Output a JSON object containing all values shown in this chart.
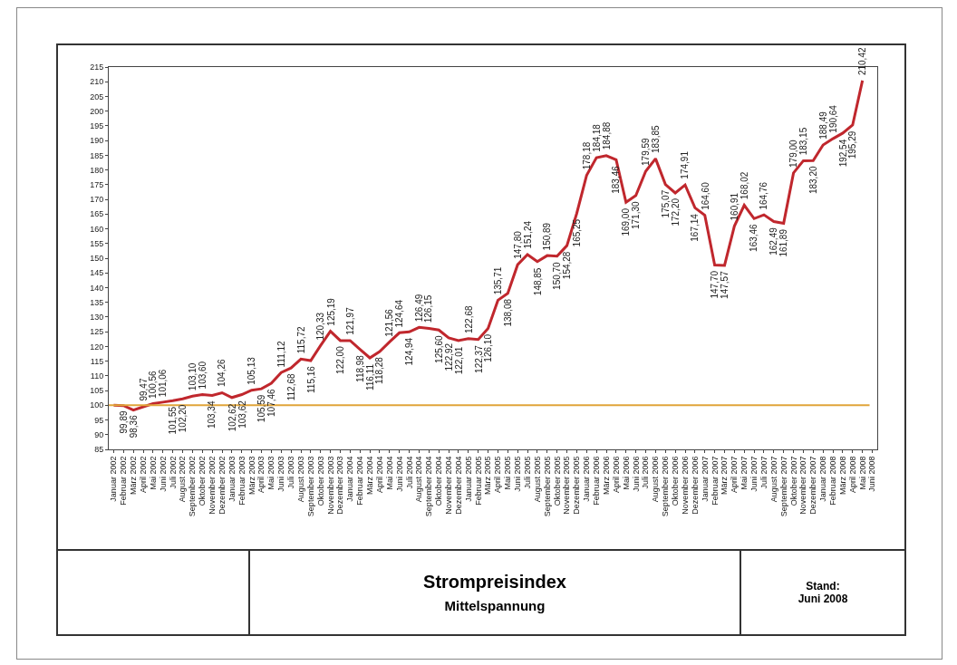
{
  "chart_data": {
    "type": "line",
    "title": "Strompreisindex",
    "subtitle": "Mittelspannung",
    "annotations": [
      "Stand:\nJuni 2008"
    ],
    "categories": [
      "Januar 2002",
      "Februar 2002",
      "März 2002",
      "April 2002",
      "Mai 2002",
      "Juni 2002",
      "Juli 2002",
      "August 2002",
      "September 2002",
      "Oktober 2002",
      "November 2002",
      "Dezember 2002",
      "Januar 2003",
      "Februar 2003",
      "März 2003",
      "April 2003",
      "Mai 2003",
      "Juni 2003",
      "Juli 2003",
      "August 2003",
      "September 2003",
      "Oktober 2003",
      "November 2003",
      "Dezember 2003",
      "Januar 2004",
      "Februar 2004",
      "März 2004",
      "April 2004",
      "Mai 2004",
      "Juni 2004",
      "Juli 2004",
      "August 2004",
      "September 2004",
      "Oktober 2004",
      "November 2004",
      "Dezember 2004",
      "Januar 2005",
      "Februar 2005",
      "März 2005",
      "April 2005",
      "Mai 2005",
      "Juni 2005",
      "Juli 2005",
      "August 2005",
      "September 2005",
      "Oktober 2005",
      "November 2005",
      "Dezember 2005",
      "Januar 2006",
      "Februar 2006",
      "März 2006",
      "April 2006",
      "Mai 2006",
      "Juni 2006",
      "Juli 2006",
      "August 2006",
      "September 2006",
      "Oktober 2006",
      "November 2006",
      "Dezember 2006",
      "Januar 2007",
      "Februar 2007",
      "März 2007",
      "April 2007",
      "Mai 2007",
      "Juni 2007",
      "Juli 2007",
      "August 2007",
      "September 2007",
      "Oktober 2007",
      "November 2007",
      "Dezember 2007",
      "Januar 2008",
      "Februar 2008",
      "März 2008",
      "April 2008",
      "Mai 2008",
      "Juni 2008"
    ],
    "series": [
      {
        "color": "#c0272d",
        "values": [
          100,
          99.89,
          98.36,
          99.47,
          100.56,
          101.06,
          101.55,
          102.2,
          103.1,
          103.6,
          103.34,
          104.26,
          102.62,
          103.62,
          105.13,
          105.59,
          107.46,
          111.12,
          112.68,
          115.72,
          115.16,
          120.33,
          125.19,
          122.0,
          121.97,
          118.98,
          116.11,
          118.28,
          121.56,
          124.64,
          124.94,
          126.49,
          126.15,
          125.6,
          122.92,
          122.01,
          122.68,
          122.37,
          126.1,
          135.71,
          138.08,
          147.8,
          151.24,
          148.85,
          150.89,
          150.7,
          154.28,
          165.25,
          178.18,
          184.18,
          184.88,
          183.46,
          169.0,
          171.3,
          179.59,
          183.85,
          175.07,
          172.2,
          174.91,
          167.14,
          164.6,
          147.7,
          147.57,
          160.91,
          168.02,
          163.46,
          164.76,
          162.49,
          161.89,
          179.0,
          183.15,
          183.2,
          188.49,
          190.64,
          192.54,
          195.29,
          210.42,
          null
        ],
        "value_labels": [
          null,
          "99,89",
          "98,36",
          "99,47",
          "100,56",
          "101,06",
          "101,55",
          "102,20",
          "103,10",
          "103,60",
          "103,34",
          "104,26",
          "102,62",
          "103,62",
          "105,13",
          "105,59",
          "107,46",
          "111,12",
          "112,68",
          "115,72",
          "115,16",
          "120,33",
          "125,19",
          "122,00",
          "121,97",
          "118,98",
          "116,11",
          "118,28",
          "121,56",
          "124,64",
          "124,94",
          "126,49",
          "126,15",
          "125,60",
          "122,92",
          "122,01",
          "122,68",
          "122,37",
          "126,10",
          "135,71",
          "138,08",
          "147,80",
          "151,24",
          "148,85",
          "150,89",
          "150,70",
          "154,28",
          "165,25",
          "178,18",
          "184,18",
          "184,88",
          "183,46",
          "169,00",
          "171,30",
          "179,59",
          "183,85",
          "175,07",
          "172,20",
          "174,91",
          "167,14",
          "164,60",
          "147,70",
          "147,57",
          "160,91",
          "168,02",
          "163,46",
          "164,76",
          "162,49",
          "161,89",
          "179,00",
          "183,15",
          "183,20",
          "188,49",
          "190,64",
          "192,54",
          "195,29",
          "210,42",
          null
        ]
      }
    ],
    "ylim": [
      85,
      215
    ],
    "yticks": [
      85,
      90,
      95,
      100,
      105,
      110,
      115,
      120,
      125,
      130,
      135,
      140,
      145,
      150,
      155,
      160,
      165,
      170,
      175,
      180,
      185,
      190,
      195,
      200,
      205,
      210,
      215
    ],
    "ref_lines": [
      {
        "axis": "y",
        "value": 100,
        "color": "#e0a53a"
      }
    ],
    "grid": false
  }
}
